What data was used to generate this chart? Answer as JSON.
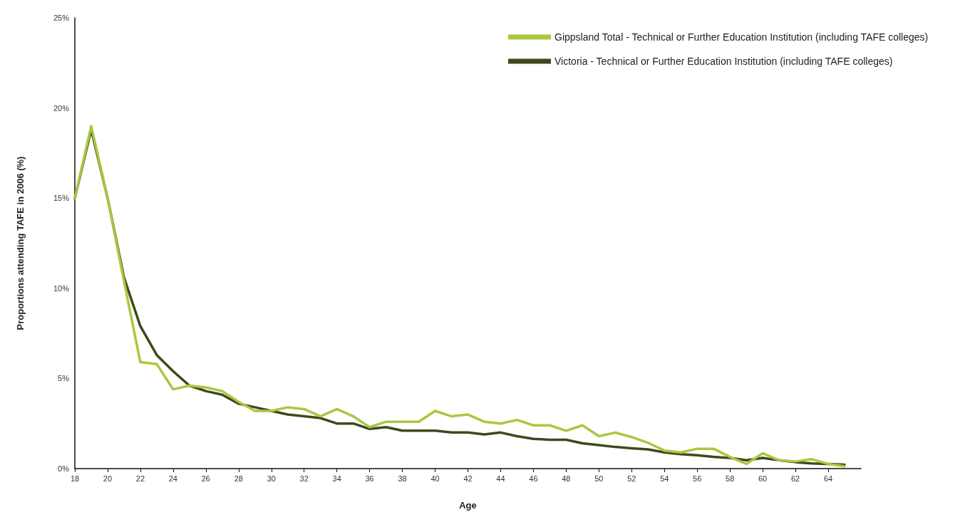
{
  "chart_data": {
    "type": "line",
    "xlabel": "Age",
    "ylabel": "Proportions attending TAFE in 2006 (%)",
    "x": [
      18,
      19,
      20,
      21,
      22,
      23,
      24,
      25,
      26,
      27,
      28,
      29,
      30,
      31,
      32,
      33,
      34,
      35,
      36,
      37,
      38,
      39,
      40,
      41,
      42,
      43,
      44,
      45,
      46,
      47,
      48,
      49,
      50,
      51,
      52,
      53,
      54,
      55,
      56,
      57,
      58,
      59,
      60,
      61,
      62,
      63,
      64,
      65
    ],
    "series": [
      {
        "name": "Gippsland Total - Technical or Further Education Institution (including TAFE colleges)",
        "color": "#a9c840",
        "values": [
          15.0,
          19.0,
          15.0,
          10.4,
          5.9,
          5.8,
          4.4,
          4.6,
          4.5,
          4.3,
          3.7,
          3.2,
          3.2,
          3.4,
          3.3,
          2.9,
          3.3,
          2.9,
          2.3,
          2.6,
          2.6,
          2.6,
          3.2,
          2.9,
          3.0,
          2.6,
          2.5,
          2.7,
          2.4,
          2.4,
          2.1,
          2.4,
          1.8,
          2.0,
          1.75,
          1.43,
          1.0,
          0.9,
          1.1,
          1.1,
          0.65,
          0.26,
          0.85,
          0.46,
          0.4,
          0.52,
          0.26,
          0.13
        ]
      },
      {
        "name": "Victoria - Technical or Further Education Institution (including TAFE colleges)",
        "color": "#3d4a1c",
        "values": [
          15.0,
          18.8,
          15.0,
          10.6,
          7.9,
          6.3,
          5.4,
          4.6,
          4.3,
          4.1,
          3.6,
          3.4,
          3.2,
          3.0,
          2.9,
          2.8,
          2.5,
          2.5,
          2.2,
          2.3,
          2.1,
          2.1,
          2.1,
          2.0,
          2.0,
          1.9,
          2.0,
          1.8,
          1.65,
          1.6,
          1.6,
          1.4,
          1.3,
          1.2,
          1.13,
          1.07,
          0.9,
          0.8,
          0.74,
          0.65,
          0.59,
          0.46,
          0.59,
          0.46,
          0.36,
          0.29,
          0.26,
          0.22
        ]
      }
    ],
    "xlim": [
      18,
      66
    ],
    "xticks": [
      18,
      20,
      22,
      24,
      26,
      28,
      30,
      32,
      34,
      36,
      38,
      40,
      42,
      44,
      46,
      48,
      50,
      52,
      54,
      56,
      58,
      60,
      62,
      64
    ],
    "ylim": [
      0,
      25
    ],
    "yticks": [
      {
        "value": 0,
        "label": "0%"
      },
      {
        "value": 5,
        "label": "5%"
      },
      {
        "value": 10,
        "label": "10%"
      },
      {
        "value": 15,
        "label": "15%"
      },
      {
        "value": 20,
        "label": "20%"
      },
      {
        "value": 25,
        "label": "25%"
      }
    ],
    "grid": false,
    "legend": "top right",
    "marker": "none",
    "line_style": "solid"
  }
}
